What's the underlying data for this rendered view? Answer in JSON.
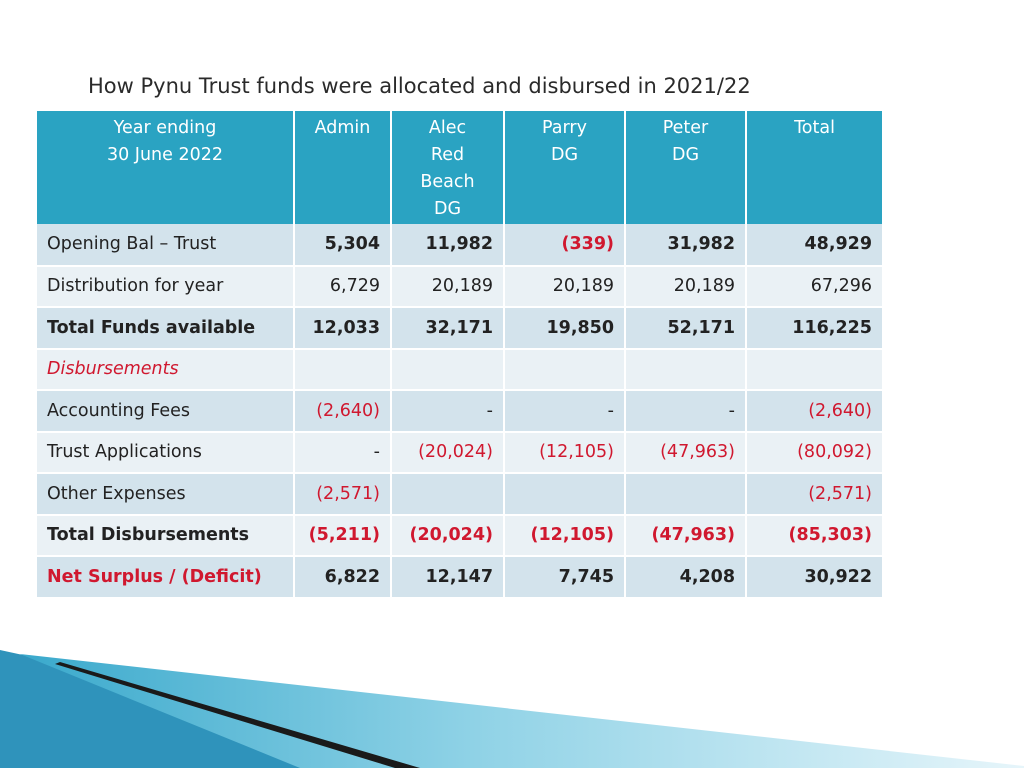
{
  "title": "How Pynu Trust funds were allocated and disbursed in 2021/22",
  "columns": [
    [
      "Year ending",
      "30 June 2022"
    ],
    [
      "Admin"
    ],
    [
      "Alec",
      "Red",
      "Beach",
      "DG"
    ],
    [
      "Parry",
      "DG"
    ],
    [
      "Peter",
      "DG"
    ],
    [
      "Total"
    ]
  ],
  "rows": [
    {
      "label": "Opening Bal – Trust",
      "style": "plain",
      "cells": [
        "5,304",
        "11,982",
        "(339)",
        "31,982",
        "48,929"
      ]
    },
    {
      "label": "Distribution for year",
      "style": "plain",
      "cells": [
        "6,729",
        "20,189",
        "20,189",
        "20,189",
        "67,296"
      ]
    },
    {
      "label": "Total Funds available",
      "style": "bold",
      "cells": [
        "12,033",
        "32,171",
        "19,850",
        "52,171",
        "116,225"
      ]
    },
    {
      "label": "Disbursements",
      "style": "section",
      "cells": [
        "",
        "",
        "",
        "",
        ""
      ]
    },
    {
      "label": "Accounting Fees",
      "style": "plain",
      "cells": [
        "(2,640)",
        "-",
        "-",
        "-",
        "(2,640)"
      ]
    },
    {
      "label": "Trust Applications",
      "style": "plain",
      "cells": [
        "-",
        "(20,024)",
        "(12,105)",
        "(47,963)",
        "(80,092)"
      ]
    },
    {
      "label": "Other Expenses",
      "style": "plain",
      "cells": [
        "(2,571)",
        "",
        "",
        "",
        "(2,571)"
      ]
    },
    {
      "label": "Total Disbursements",
      "style": "bold",
      "cells": [
        "(5,211)",
        "(20,024)",
        "(12,105)",
        "(47,963)",
        "(85,303)"
      ]
    },
    {
      "label": "Net Surplus / (Deficit)",
      "style": "red-bold",
      "cells": [
        "6,822",
        "12,147",
        "7,745",
        "4,208",
        "30,922"
      ]
    }
  ],
  "colors": {
    "header_bg": "#2aa3c2",
    "row_odd": "#d3e3ec",
    "row_even": "#eaf1f5",
    "negative": "#d0182f",
    "decor_light": "#6cc3dd",
    "decor_dark": "#1a1a1a"
  }
}
